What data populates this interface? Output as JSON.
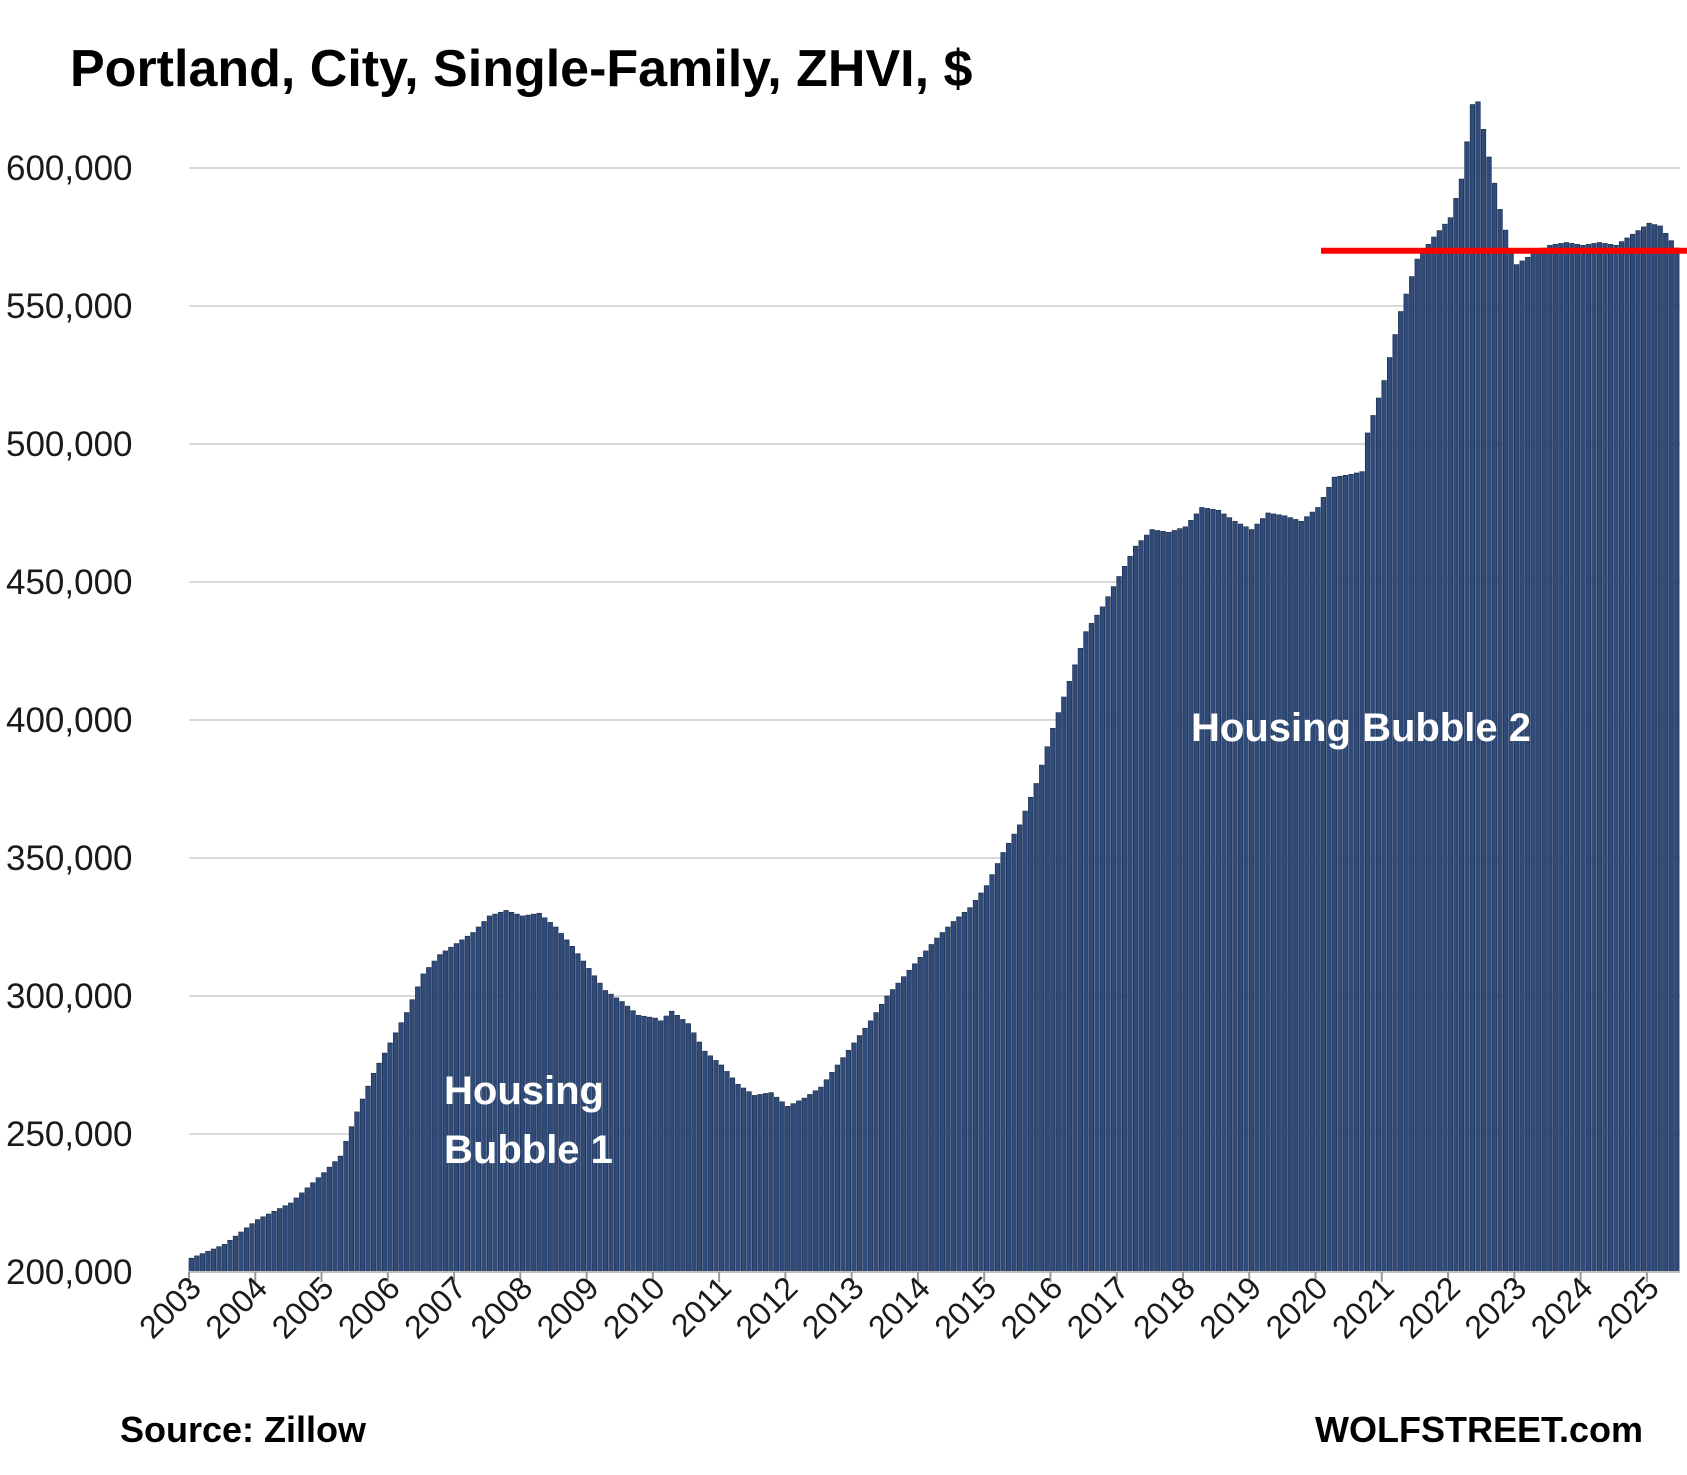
{
  "chart_data": {
    "type": "bar",
    "title": "Portland, City, Single-Family, ZHVI, $",
    "xlabel": "",
    "ylabel": "",
    "ylim": [
      200000,
      625000
    ],
    "y_ticks": [
      "200,000",
      "250,000",
      "300,000",
      "350,000",
      "400,000",
      "450,000",
      "500,000",
      "550,000",
      "600,000"
    ],
    "x_ticks": [
      "2003",
      "2004",
      "2005",
      "2006",
      "2007",
      "2008",
      "2009",
      "2010",
      "2011",
      "2012",
      "2013",
      "2014",
      "2015",
      "2016",
      "2017",
      "2018",
      "2019",
      "2020",
      "2021",
      "2022",
      "2023",
      "2024",
      "2025"
    ],
    "grid": true,
    "bar_color": "#2f4b7c",
    "reference_line": {
      "value": 570000,
      "start": "2020-02",
      "color": "#ff0000"
    },
    "annotations": [
      {
        "lines": [
          "Housing",
          "Bubble 1"
        ],
        "color": "#ffffff"
      },
      {
        "lines": [
          "Housing Bubble 2"
        ],
        "color": "#ffffff"
      }
    ],
    "series_anchors": [
      [
        "2003-01",
        205000
      ],
      [
        "2003-07",
        210000
      ],
      [
        "2004-01",
        219000
      ],
      [
        "2004-07",
        225000
      ],
      [
        "2005-01",
        236000
      ],
      [
        "2005-04",
        242000
      ],
      [
        "2005-07",
        258000
      ],
      [
        "2005-10",
        272000
      ],
      [
        "2006-01",
        283000
      ],
      [
        "2006-04",
        294000
      ],
      [
        "2006-07",
        308000
      ],
      [
        "2006-10",
        315000
      ],
      [
        "2007-01",
        319000
      ],
      [
        "2007-04",
        323000
      ],
      [
        "2007-07",
        329000
      ],
      [
        "2007-10",
        331000
      ],
      [
        "2008-01",
        329000
      ],
      [
        "2008-04",
        330000
      ],
      [
        "2008-07",
        325000
      ],
      [
        "2008-10",
        318000
      ],
      [
        "2009-01",
        310000
      ],
      [
        "2009-04",
        302000
      ],
      [
        "2009-07",
        298000
      ],
      [
        "2009-10",
        293000
      ],
      [
        "2010-01",
        292000
      ],
      [
        "2010-02",
        291000
      ],
      [
        "2010-04",
        294500
      ],
      [
        "2010-07",
        290000
      ],
      [
        "2010-10",
        280000
      ],
      [
        "2011-01",
        275000
      ],
      [
        "2011-04",
        268000
      ],
      [
        "2011-07",
        264000
      ],
      [
        "2011-10",
        265000
      ],
      [
        "2012-01",
        260000
      ],
      [
        "2012-04",
        263000
      ],
      [
        "2012-07",
        267000
      ],
      [
        "2012-10",
        275000
      ],
      [
        "2013-01",
        283000
      ],
      [
        "2013-04",
        291000
      ],
      [
        "2013-07",
        300000
      ],
      [
        "2013-10",
        307000
      ],
      [
        "2014-01",
        314000
      ],
      [
        "2014-04",
        321000
      ],
      [
        "2014-07",
        327000
      ],
      [
        "2014-10",
        332000
      ],
      [
        "2015-01",
        340000
      ],
      [
        "2015-04",
        352000
      ],
      [
        "2015-07",
        362000
      ],
      [
        "2015-10",
        377000
      ],
      [
        "2016-01",
        397000
      ],
      [
        "2016-04",
        414000
      ],
      [
        "2016-07",
        432000
      ],
      [
        "2016-10",
        441000
      ],
      [
        "2017-01",
        452000
      ],
      [
        "2017-04",
        463000
      ],
      [
        "2017-07",
        469000
      ],
      [
        "2017-10",
        468000
      ],
      [
        "2018-01",
        470000
      ],
      [
        "2018-04",
        477000
      ],
      [
        "2018-07",
        476000
      ],
      [
        "2018-10",
        472000
      ],
      [
        "2019-01",
        469000
      ],
      [
        "2019-04",
        475000
      ],
      [
        "2019-07",
        474000
      ],
      [
        "2019-10",
        472000
      ],
      [
        "2020-01",
        477000
      ],
      [
        "2020-04",
        488000
      ],
      [
        "2020-07",
        489000
      ],
      [
        "2020-09",
        490000
      ],
      [
        "2020-10",
        504000
      ],
      [
        "2021-01",
        523000
      ],
      [
        "2021-04",
        548000
      ],
      [
        "2021-07",
        567000
      ],
      [
        "2021-10",
        575000
      ],
      [
        "2022-01",
        582000
      ],
      [
        "2022-03",
        596000
      ],
      [
        "2022-05",
        623000
      ],
      [
        "2022-06",
        624000
      ],
      [
        "2022-08",
        604000
      ],
      [
        "2022-10",
        585000
      ],
      [
        "2022-12",
        570000
      ],
      [
        "2023-01",
        565000
      ],
      [
        "2023-04",
        569000
      ],
      [
        "2023-07",
        572000
      ],
      [
        "2023-10",
        573000
      ],
      [
        "2024-01",
        572000
      ],
      [
        "2024-04",
        573000
      ],
      [
        "2024-07",
        572000
      ],
      [
        "2024-10",
        576000
      ],
      [
        "2025-01",
        580000
      ],
      [
        "2025-03",
        579000
      ],
      [
        "2025-06",
        571000
      ]
    ]
  },
  "footer": {
    "source": "Source: Zillow",
    "brand": "WOLFSTREET.com"
  }
}
